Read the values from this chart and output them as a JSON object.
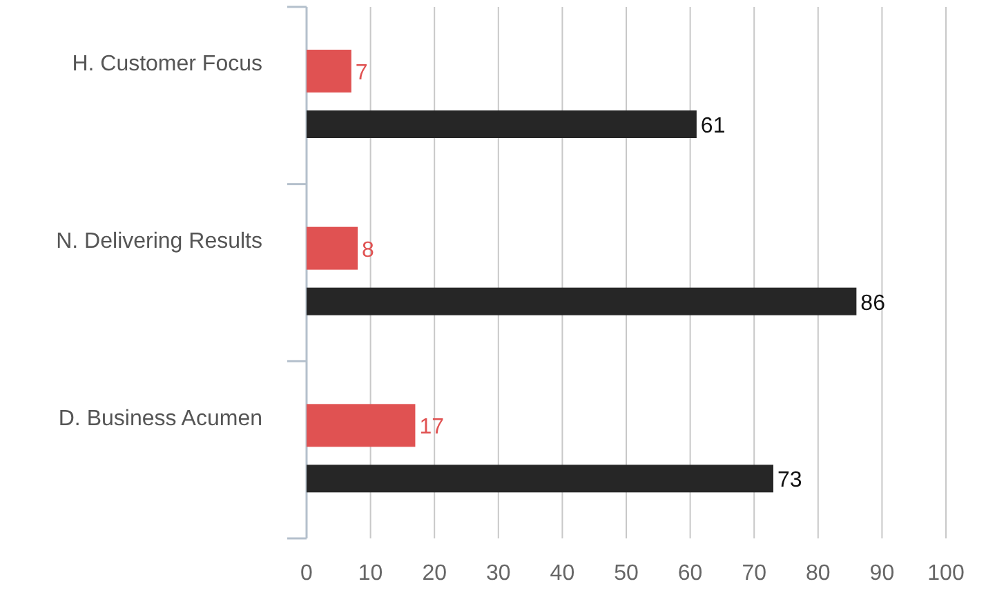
{
  "chart_data": {
    "type": "bar",
    "orientation": "horizontal",
    "categories": [
      "H. Customer Focus",
      "N. Delivering Results",
      "D. Business Acumen"
    ],
    "series": [
      {
        "color": "#e05252",
        "values": [
          7,
          8,
          17
        ]
      },
      {
        "color": "#262626",
        "values": [
          61,
          86,
          73
        ]
      }
    ],
    "xlim": [
      0,
      100
    ],
    "xticks": [
      0,
      10,
      20,
      30,
      40,
      50,
      60,
      70,
      80,
      90,
      100
    ],
    "grid": "x",
    "data_labels": true
  }
}
